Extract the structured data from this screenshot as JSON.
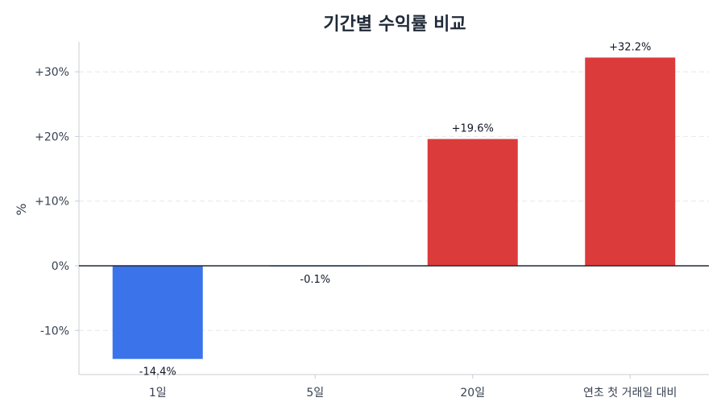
{
  "chart_data": {
    "type": "bar",
    "title": "기간별 수익률 비교",
    "ylabel": "%",
    "xlabel": "",
    "categories": [
      "1일",
      "5일",
      "20일",
      "연초 첫 거래일 대비"
    ],
    "values": [
      -14.4,
      -0.1,
      19.6,
      32.2
    ],
    "value_labels": [
      "-14.4%",
      "-0.1%",
      "+19.6%",
      "+32.2%"
    ],
    "ylim": [
      -16.5,
      34.8
    ],
    "yticks": [
      -10,
      0,
      10,
      20,
      30
    ],
    "ytick_labels": [
      "-10%",
      "0%",
      "+10%",
      "+20%",
      "+30%"
    ],
    "grid": true,
    "colors": {
      "positive": "#dc3b3b",
      "negative": "#3b73ea",
      "zero_line": "#1f2937"
    }
  }
}
